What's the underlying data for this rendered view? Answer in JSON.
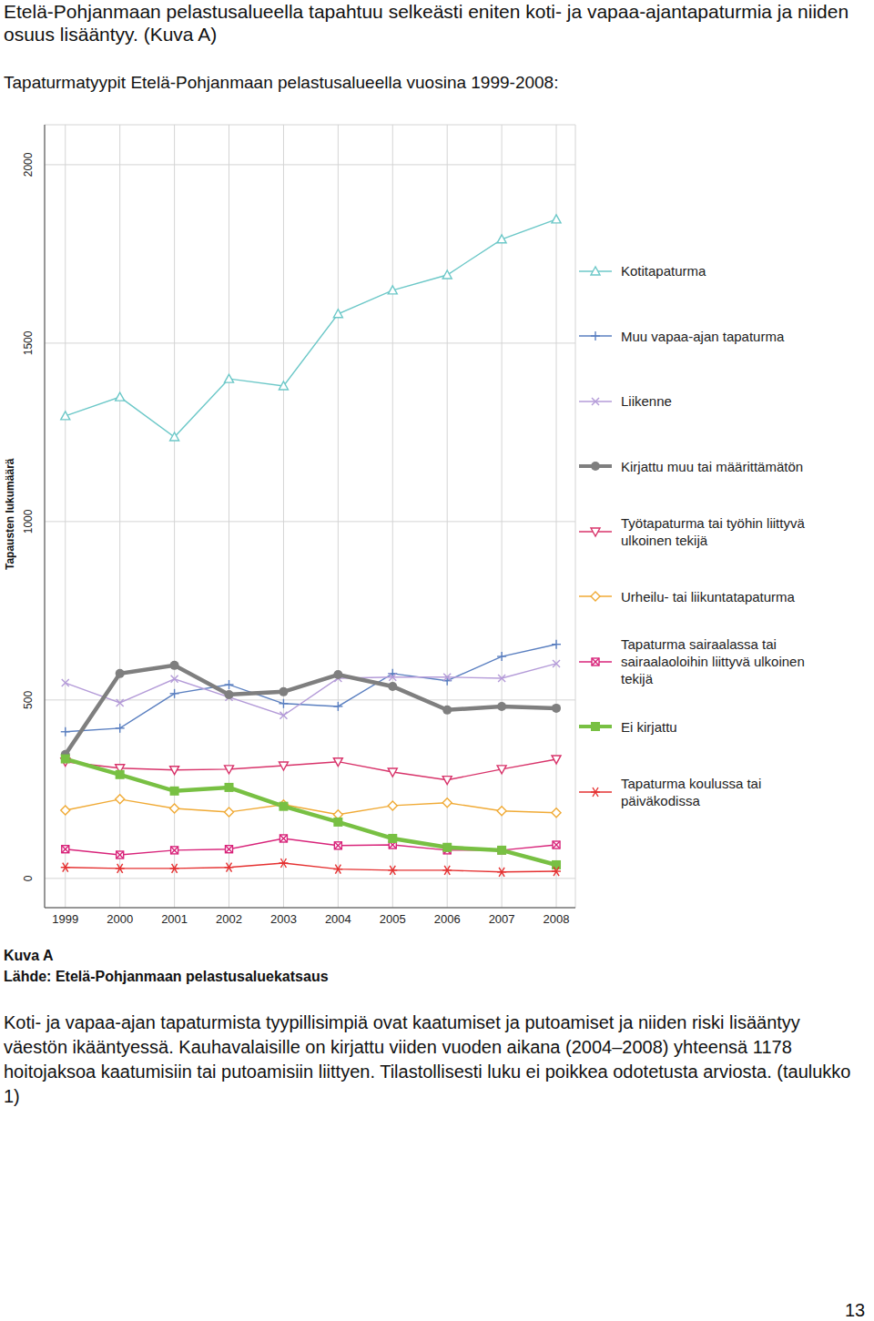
{
  "header": "Etelä-Pohjanmaan pelastusalueella tapahtuu selkeästi eniten koti- ja vapaa-ajantapaturmia ja niiden osuus lisääntyy. (Kuva A)",
  "chart_heading": "Tapaturmatyypit Etelä-Pohjanmaan pelastusalueella vuosina 1999-2008:",
  "chart_data": {
    "type": "line",
    "ylabel": "Tapausten lukumäärä",
    "x": [
      1999,
      2000,
      2001,
      2002,
      2003,
      2004,
      2005,
      2006,
      2007,
      2008
    ],
    "xlim": [
      1998.62,
      2008.35
    ],
    "xticks": [
      1999,
      2000,
      2001,
      2002,
      2003,
      2004,
      2005,
      2006,
      2007,
      2008
    ],
    "ylim": [
      -82,
      2112
    ],
    "yticks": [
      0,
      500,
      1000,
      1500,
      2000
    ],
    "grid": true,
    "legend": "right",
    "series": [
      {
        "name": "Kotitapaturma",
        "color": "#6cc8c8",
        "marker": "triangle",
        "line_style": "solid",
        "values": [
          1296,
          1349,
          1237,
          1400,
          1380,
          1582,
          1648,
          1691,
          1791,
          1847
        ]
      },
      {
        "name": "Muu vapaa-ajan tapaturma",
        "color": "#5a7fc0",
        "marker": "plus",
        "line_style": "solid",
        "values": [
          411,
          421,
          518,
          543,
          490,
          482,
          574,
          554,
          622,
          656
        ]
      },
      {
        "name": "Liikenne",
        "color": "#b49bd8",
        "marker": "cross",
        "line_style": "solid",
        "values": [
          548,
          492,
          559,
          508,
          457,
          561,
          564,
          564,
          561,
          602
        ]
      },
      {
        "name": "Kirjattu muu tai määrittämätön",
        "color": "#7f7f7f",
        "marker": "circle",
        "line_style": "thick",
        "values": [
          347,
          574,
          597,
          515,
          523,
          571,
          538,
          472,
          482,
          477
        ]
      },
      {
        "name": "Työtapaturma tai työhin liittyvä ulkoinen tekijä",
        "color": "#d8336a",
        "marker": "triangle-down",
        "line_style": "solid",
        "values": [
          327,
          309,
          304,
          306,
          316,
          327,
          298,
          276,
          306,
          334
        ]
      },
      {
        "name": "Urheilu- tai liikuntatapaturma",
        "color": "#f0aa35",
        "marker": "diamond",
        "line_style": "solid",
        "values": [
          191,
          222,
          196,
          186,
          207,
          179,
          204,
          212,
          189,
          184
        ]
      },
      {
        "name": "Tapaturma sairaalassa tai sairaalaoloihin liittyvä ulkoinen tekijä",
        "color": "#d8247a",
        "marker": "square-x",
        "line_style": "solid",
        "values": [
          82,
          66,
          79,
          82,
          112,
          92,
          94,
          79,
          79,
          94
        ]
      },
      {
        "name": "Ei kirjattu",
        "color": "#78c043",
        "marker": "square",
        "line_style": "thick",
        "values": [
          335,
          291,
          245,
          255,
          202,
          158,
          112,
          87,
          79,
          38
        ]
      },
      {
        "name": "Tapaturma koulussa tai päiväkodissa",
        "color": "#e53030",
        "marker": "asterisk",
        "line_style": "solid",
        "values": [
          31,
          28,
          28,
          31,
          43,
          26,
          23,
          23,
          18,
          20
        ]
      }
    ]
  },
  "caption": {
    "label": "Kuva A",
    "source": "Lähde: Etelä-Pohjanmaan pelastusaluekatsaus"
  },
  "body": "Koti- ja vapaa-ajan tapaturmista tyypillisimpiä ovat kaatumiset ja putoamiset ja niiden riski lisääntyy väestön ikääntyessä. Kauhavalaisille on kirjattu viiden vuoden aikana (2004–2008) yhteensä 1178 hoitojaksoa kaatumisiin tai putoamisiin liittyen. Tilastollisesti luku ei poikkea odotetusta arviosta. (taulukko 1)",
  "page_number": 13
}
